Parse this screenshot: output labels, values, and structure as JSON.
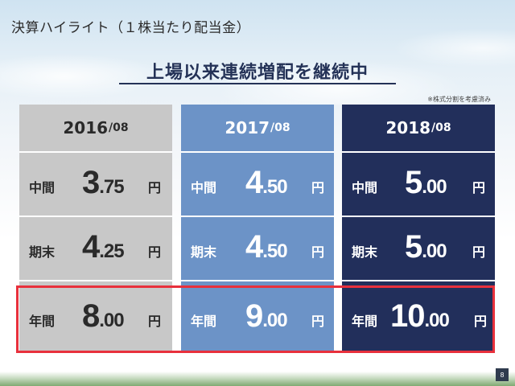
{
  "slide_title": "決算ハイライト（１株当たり配当金）",
  "headline": "上場以来連続増配を継続中",
  "note": "※株式分割を考慮済み",
  "page_number": "8",
  "columns": [
    {
      "year": "2016",
      "suffix": "/08",
      "rows": [
        {
          "label": "中間",
          "int": "3",
          "dec": ".75",
          "unit": "円"
        },
        {
          "label": "期末",
          "int": "4",
          "dec": ".25",
          "unit": "円"
        },
        {
          "label": "年間",
          "int": "8",
          "dec": ".00",
          "unit": "円"
        }
      ]
    },
    {
      "year": "2017",
      "suffix": "/08",
      "rows": [
        {
          "label": "中間",
          "int": "4",
          "dec": ".50",
          "unit": "円"
        },
        {
          "label": "期末",
          "int": "4",
          "dec": ".50",
          "unit": "円"
        },
        {
          "label": "年間",
          "int": "9",
          "dec": ".00",
          "unit": "円"
        }
      ]
    },
    {
      "year": "2018",
      "suffix": "/08",
      "rows": [
        {
          "label": "中間",
          "int": "5",
          "dec": ".00",
          "unit": "円"
        },
        {
          "label": "期末",
          "int": "5",
          "dec": ".00",
          "unit": "円"
        },
        {
          "label": "年間",
          "int": "10",
          "dec": ".00",
          "unit": "円"
        }
      ]
    }
  ],
  "colors": {
    "col_2016": "#c8c8c8",
    "col_2017": "#6c93c7",
    "col_2018": "#222f5b",
    "highlight_border": "#e8303c",
    "headline": "#243257"
  }
}
